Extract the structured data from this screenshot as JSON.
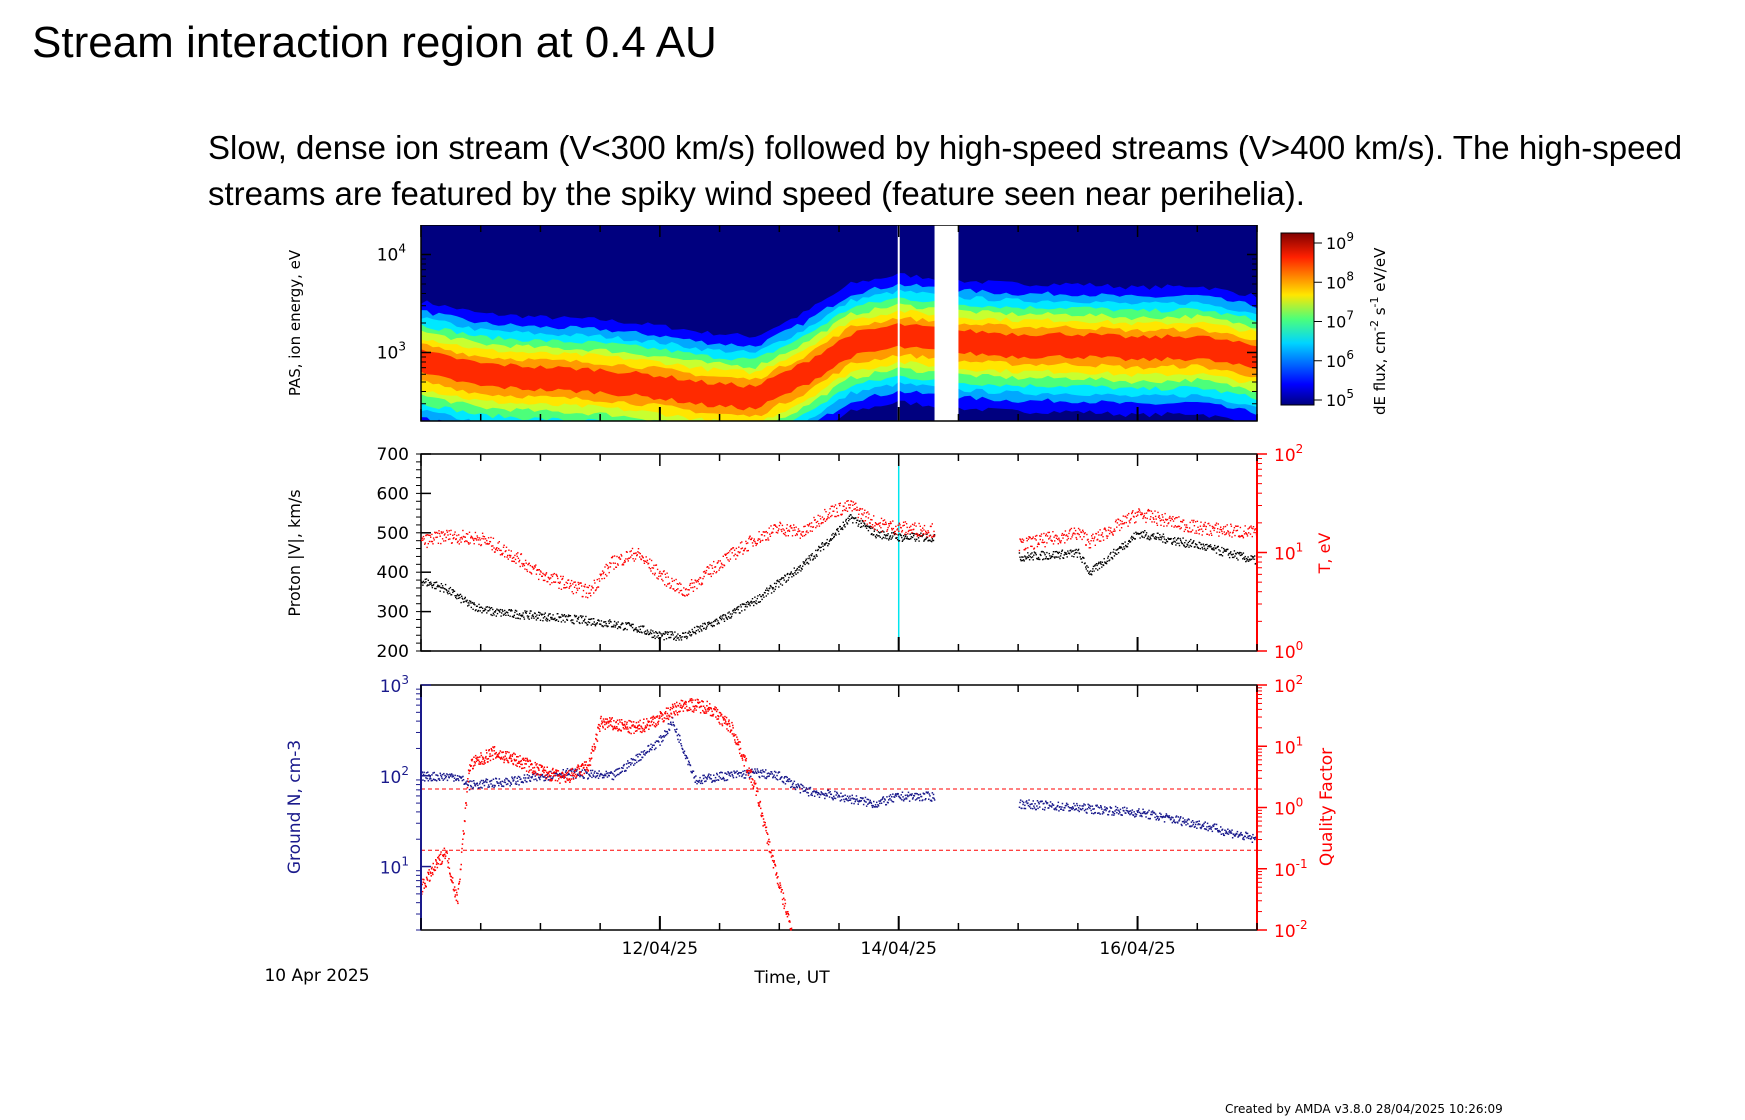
{
  "slide": {
    "title": "Stream interaction region at 0.4 AU",
    "description": "Slow, dense ion stream (V<300 km/s) followed by high-speed streams (V>400 km/s). The high-speed streams are featured by the spiky wind speed (feature seen near perihelia)."
  },
  "footer": "Created by AMDA v3.8.0 28/04/2025 10:26:09",
  "colors": {
    "black": "#000000",
    "red": "#ff0000",
    "navy": "#1a1a8c",
    "cyan": "#00e5ee"
  },
  "chart_data": [
    {
      "type": "heatmap",
      "ylabel": "PAS, ion energy, eV",
      "yscale": "log",
      "ylim": [
        200,
        20000
      ],
      "yticks": [
        {
          "base": "10",
          "exp": "3"
        },
        {
          "base": "10",
          "exp": "4"
        }
      ],
      "colorbar": {
        "label": "dE flux, cm",
        "label_parts": [
          "dE flux, cm",
          "-2",
          " s",
          "-1",
          " eV/eV"
        ],
        "scale": "log",
        "range": [
          100000,
          1000000000
        ],
        "ticks": [
          {
            "base": "10",
            "exp": "5"
          },
          {
            "base": "10",
            "exp": "6"
          },
          {
            "base": "10",
            "exp": "7"
          },
          {
            "base": "10",
            "exp": "8"
          },
          {
            "base": "10",
            "exp": "9"
          }
        ]
      },
      "peak_energy_ev": {
        "t_days": [
          0,
          0.5,
          1,
          1.5,
          2,
          2.4,
          2.8,
          3.2,
          3.6,
          4.0,
          4.5,
          5.0,
          5.5,
          6.0,
          6.5,
          7.0
        ],
        "values": [
          800,
          600,
          550,
          520,
          450,
          380,
          350,
          600,
          1200,
          1500,
          1300,
          1200,
          1200,
          1100,
          1150,
          900
        ]
      },
      "data_gap_days": [
        4.3,
        4.5
      ]
    },
    {
      "type": "line",
      "ylabel": "Proton |V|, km/s",
      "ylim": [
        200,
        700
      ],
      "yticks": [
        "200",
        "300",
        "400",
        "500",
        "600",
        "700"
      ],
      "secondary_ylabel": "T, eV",
      "secondary_yscale": "log",
      "secondary_ylim": [
        1,
        100
      ],
      "secondary_yticks": [
        {
          "base": "10",
          "exp": "0"
        },
        {
          "base": "10",
          "exp": "1"
        },
        {
          "base": "10",
          "exp": "2"
        }
      ],
      "series": [
        {
          "axis": "left",
          "color": "#000000",
          "t_days": [
            0,
            0.2,
            0.4,
            0.6,
            1.0,
            1.5,
            1.8,
            2.0,
            2.2,
            2.5,
            2.8,
            3.2,
            3.6,
            3.8,
            4.0,
            4.3,
            4.5,
            5.0,
            5.5,
            5.6,
            6.0,
            6.5,
            7.0
          ],
          "values": [
            380,
            360,
            320,
            300,
            290,
            275,
            260,
            240,
            240,
            280,
            330,
            420,
            540,
            500,
            490,
            490,
            null,
            440,
            450,
            400,
            500,
            470,
            430
          ]
        },
        {
          "axis": "right",
          "color": "#ff0000",
          "t_days": [
            0,
            0.2,
            0.5,
            0.8,
            1.0,
            1.4,
            1.6,
            1.8,
            2.0,
            2.2,
            2.5,
            2.8,
            3.0,
            3.2,
            3.4,
            3.6,
            3.8,
            4.0,
            4.3,
            4.5,
            5.0,
            5.5,
            5.6,
            6.0,
            6.5,
            7.0
          ],
          "values": [
            13,
            15,
            14,
            9,
            6,
            4,
            8,
            10,
            6,
            4,
            8,
            14,
            18,
            16,
            26,
            30,
            20,
            18,
            17,
            null,
            12,
            16,
            13,
            25,
            18,
            16
          ]
        }
      ],
      "marker_line_day": 4.0
    },
    {
      "type": "line",
      "ylabel": "Ground N, cm-3",
      "yscale": "log",
      "ylim": [
        2,
        1000
      ],
      "yticks": [
        {
          "base": "10",
          "exp": "1"
        },
        {
          "base": "10",
          "exp": "2"
        },
        {
          "base": "10",
          "exp": "3"
        }
      ],
      "secondary_ylabel": "Quality Factor",
      "secondary_yscale": "log",
      "secondary_ylim": [
        0.01,
        100
      ],
      "secondary_yticks": [
        {
          "base": "10",
          "exp": "-2"
        },
        {
          "base": "10",
          "exp": "-1"
        },
        {
          "base": "10",
          "exp": "0"
        },
        {
          "base": "10",
          "exp": "1"
        },
        {
          "base": "10",
          "exp": "2"
        }
      ],
      "reference_lines": [
        2,
        0.2
      ],
      "series": [
        {
          "axis": "left",
          "color": "#1a1a8c",
          "t_days": [
            0,
            0.3,
            0.4,
            0.8,
            1.2,
            1.6,
            2.0,
            2.1,
            2.3,
            2.5,
            2.8,
            3.0,
            3.2,
            3.5,
            3.8,
            4.0,
            4.3,
            4.5,
            5.0,
            5.5,
            6.0,
            6.5,
            7.0
          ],
          "values": [
            100,
            100,
            80,
            90,
            110,
            100,
            250,
            400,
            90,
            100,
            110,
            100,
            70,
            60,
            50,
            60,
            60,
            null,
            50,
            45,
            40,
            30,
            20
          ]
        },
        {
          "axis": "right",
          "color": "#ff0000",
          "t_days": [
            0,
            0.2,
            0.3,
            0.4,
            0.6,
            0.8,
            1.0,
            1.2,
            1.4,
            1.5,
            1.8,
            2.0,
            2.2,
            2.4,
            2.6,
            2.8,
            2.9,
            3.0,
            3.1
          ],
          "values": [
            0.05,
            0.2,
            0.03,
            5,
            8,
            6,
            4,
            3,
            5,
            25,
            20,
            30,
            50,
            45,
            20,
            2,
            0.3,
            0.05,
            0.01
          ]
        }
      ]
    }
  ],
  "time_axis": {
    "label": "Time, UT",
    "start_label": "10 Apr 2025",
    "range_days": [
      0,
      7
    ],
    "major_ticks": [
      {
        "day": 2,
        "label": "12/04/25"
      },
      {
        "day": 4,
        "label": "14/04/25"
      },
      {
        "day": 6,
        "label": "16/04/25"
      }
    ]
  }
}
